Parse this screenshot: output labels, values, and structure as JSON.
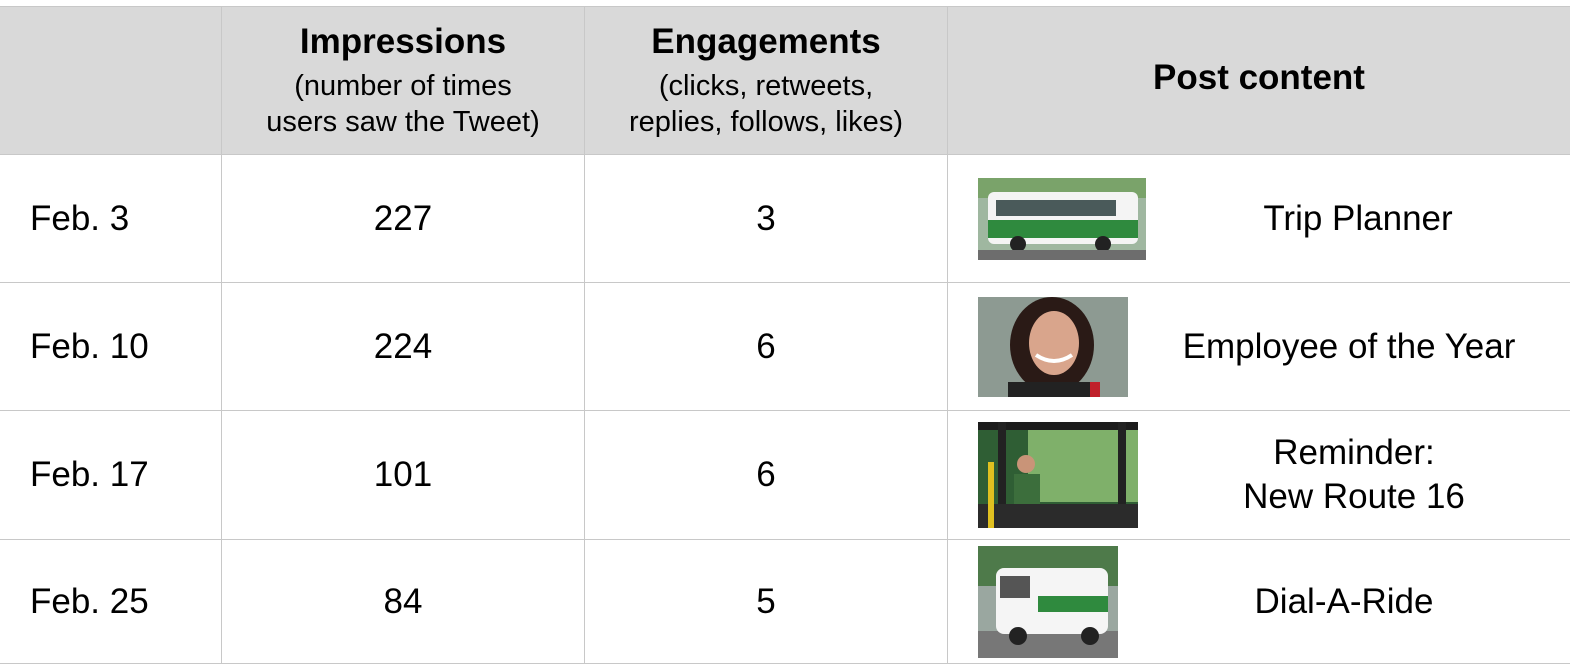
{
  "table": {
    "header": {
      "impressions": {
        "title": "Impressions",
        "subtitle": [
          "(number of times",
          "users saw the Tweet)"
        ]
      },
      "engagements": {
        "title": "Engagements",
        "subtitle": [
          "(clicks, retweets,",
          "replies, follows, likes)"
        ]
      },
      "post": {
        "title": "Post content"
      }
    },
    "rows": [
      {
        "date": "Feb. 3",
        "impressions": 227,
        "engagements": 3,
        "post": [
          "Trip Planner"
        ]
      },
      {
        "date": "Feb. 10",
        "impressions": 224,
        "engagements": 6,
        "post": [
          "Employee of the Year"
        ]
      },
      {
        "date": "Feb. 17",
        "impressions": 101,
        "engagements": 6,
        "post": [
          "Reminder:",
          "New Route 16"
        ]
      },
      {
        "date": "Feb. 25",
        "impressions": 84,
        "engagements": 5,
        "post": [
          "Dial-A-Ride"
        ]
      }
    ]
  }
}
